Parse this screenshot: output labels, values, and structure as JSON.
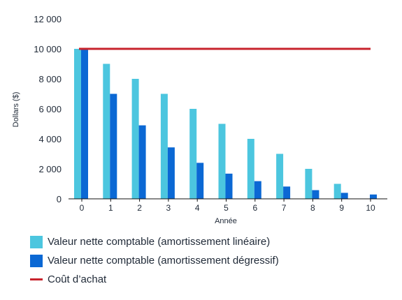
{
  "chart_data": {
    "type": "bar",
    "x_label": "Année",
    "y_label": "Dollars ($)",
    "categories": [
      "0",
      "1",
      "2",
      "3",
      "4",
      "5",
      "6",
      "7",
      "8",
      "9",
      "10"
    ],
    "series": [
      {
        "name": "Valeur nette comptable (amortissement linéaire)",
        "type": "bar",
        "color": "#4cc6df",
        "values": [
          10000,
          9000,
          8000,
          7000,
          6000,
          5000,
          4000,
          3000,
          2000,
          1000,
          0
        ]
      },
      {
        "name": "Valeur nette comptable (amortissement dégressif)",
        "type": "bar",
        "color": "#0b68d4",
        "values": [
          10000,
          7000,
          4900,
          3430,
          2400,
          1680,
          1180,
          820,
          580,
          400,
          290
        ]
      },
      {
        "name": "Coût d’achat",
        "type": "line",
        "color": "#c8232c",
        "values": [
          10000,
          10000,
          10000,
          10000,
          10000,
          10000,
          10000,
          10000,
          10000,
          10000,
          10000
        ]
      }
    ],
    "y_ticks": [
      "0",
      "2 000",
      "4 000",
      "6 000",
      "8 000",
      "10 000",
      "12 000"
    ],
    "y_range": [
      0,
      12000
    ],
    "grid": false,
    "legend_position": "bottom-left"
  }
}
